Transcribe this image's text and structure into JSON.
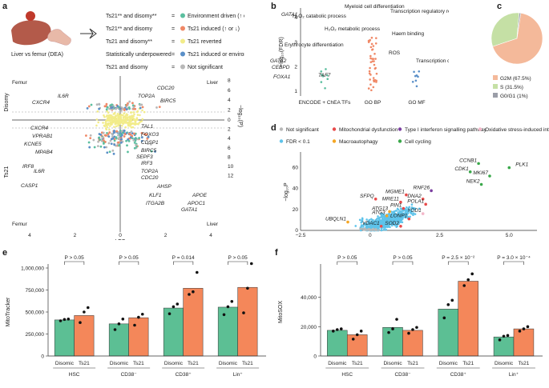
{
  "panel_labels": {
    "a": "a",
    "b": "b",
    "c": "c",
    "d": "d",
    "e": "e",
    "f": "f"
  },
  "colors": {
    "teal": "#5bbf9f",
    "salmon": "#f08866",
    "yellow": "#f2ec8a",
    "blue": "#5a8fc8",
    "lightblue": "#5ec3ea",
    "grey": "#b8b8b8",
    "pie_g2m": "#f4b99a",
    "pie_s": "#c5e0a5",
    "pie_g0": "#9b9ea8",
    "bar_green": "#5cbf94",
    "bar_orange": "#f4875a",
    "red": "#e84a4a",
    "purple": "#7b3fa0",
    "orange": "#f5a623",
    "green": "#3aa84a",
    "pink": "#f3b7c9"
  },
  "panel_a": {
    "image_caption": "Liver vs femur (DEA)",
    "legend": [
      {
        "label": "Ts21** and disomy**",
        "desc": "Environment driven (↑ or ↓)",
        "color": "#5bbf9f"
      },
      {
        "label": "Ts21** and disomy",
        "desc": "Ts21 induced (↑ or ↓)",
        "color": "#f08866"
      },
      {
        "label": "Ts21 and disomy**",
        "desc": "Ts21 reverted",
        "color": "#f2ec8a"
      },
      {
        "label": "Statistically underpowered",
        "desc": "Ts21 induced or environment driven",
        "color": "#5a8fc8"
      },
      {
        "label": "Ts21 and disomy",
        "desc": "Not significant",
        "color": "#b8b8b8"
      }
    ],
    "eq": "=",
    "corner_labels": {
      "femur_top": "Femur",
      "liver_top": "Liver",
      "femur_bottom": "Femur",
      "liver_bottom": "Liver"
    },
    "row_labels": {
      "disomy": "Disomy",
      "ts21": "Ts21"
    },
    "xlabel": "LFC",
    "ylabel": "−log₁₀(P)",
    "xticks": [
      "4",
      "2",
      "0",
      "2",
      "4"
    ],
    "yticks_top": [
      "8",
      "6",
      "4",
      "2",
      "0"
    ],
    "yticks_bottom": [
      "2",
      "4",
      "6",
      "8",
      "10",
      "12"
    ],
    "genes": [
      "IL6R",
      "CXCR4",
      "TOP2A",
      "CDC20",
      "BIRC5",
      "CXCR4",
      "VPRAB1",
      "KCNE5",
      "MPAB4",
      "IRF8",
      "IL6R",
      "CASP1",
      "TAL1",
      "FOXO3",
      "CDSP1",
      "BIRC5",
      "SEPF3",
      "IRF3",
      "TOP2A",
      "CDC20",
      "AHSP",
      "KLF1",
      "APOE",
      "ITGA2B",
      "APOC1",
      "GATA1"
    ]
  },
  "panel_b": {
    "ylabel": "−log₁₀(FDR)",
    "yticks": [
      "1",
      "2",
      "3",
      "4"
    ],
    "categories": [
      "ENCODE + ChEA TFs",
      "GO BP",
      "GO MF"
    ],
    "annotations": [
      "Myeloid cell differentiation",
      "GATA1",
      "H₂O₂ catabolic process",
      "H₂O₂ metabolic process",
      "Erythrocyte differentiation",
      "GATA2",
      "CEBPD",
      "ROS",
      "FOXA1",
      "TAF7",
      "Transcription regulatory region nucleic acid binding",
      "Haem binding",
      "Transcription cis-regulatory region binding"
    ]
  },
  "panel_c": {
    "chart_data": {
      "type": "pie",
      "categories": [
        "G2M (67.5%)",
        "S (31.5%)",
        "G0/G1 (1%)"
      ],
      "values": [
        67.5,
        31.5,
        1.0
      ]
    }
  },
  "panel_d": {
    "legend": [
      {
        "label": "Not significant",
        "color": "#b8b8b8"
      },
      {
        "label": "Mitochondrial dysfunction",
        "color": "#e84a4a"
      },
      {
        "label": "Type I interferon signalling pathway",
        "color": "#7b3fa0"
      },
      {
        "label": "Oxidative stress-induced intrinsic apoptotic signalling",
        "color": "#f3b7c9"
      },
      {
        "label": "FDR < 0.1",
        "color": "#5ec3ea"
      },
      {
        "label": "Macroautophagy",
        "color": "#f5a623"
      },
      {
        "label": "Cell cycling",
        "color": "#3aa84a"
      }
    ],
    "xlabel": "LFC",
    "ylabel": "−log₁₀P",
    "xticks": [
      "−2.5",
      "0",
      "2.5",
      "5.0"
    ],
    "yticks": [
      "0",
      "20",
      "40",
      "60"
    ],
    "genes": [
      "CCNB1",
      "CDK1",
      "MKI67",
      "PLK1",
      "NEK2",
      "RNF26",
      "MGME1",
      "DNA2",
      "MRE11",
      "POLA1",
      "SFPQ",
      "PIN1",
      "ATG13",
      "ATG3",
      "LONP1",
      "YOD1",
      "UBQLN1",
      "VDAC1",
      "SOD2"
    ]
  },
  "panel_e": {
    "chart_data": {
      "type": "bar",
      "ylabel": "MitoTracker",
      "ylim": [
        0,
        1000000
      ],
      "yticks": [
        "0",
        "250,000",
        "500,000",
        "750,000",
        "1,000,000"
      ],
      "groups": [
        "HSC",
        "CD38⁻",
        "CD38⁺",
        "Lin⁺"
      ],
      "series": [
        {
          "name": "Disomic",
          "values": [
            410000,
            365000,
            545000,
            555000
          ]
        },
        {
          "name": "Ts21",
          "values": [
            460000,
            435000,
            770000,
            780000
          ]
        }
      ],
      "points": [
        [
          [
            400000,
            415000,
            420000
          ],
          [
            380000,
            500000,
            550000
          ]
        ],
        [
          [
            300000,
            365000,
            420000
          ],
          [
            350000,
            440000,
            475000
          ]
        ],
        [
          [
            480000,
            560000,
            590000
          ],
          [
            700000,
            730000,
            950000
          ]
        ],
        [
          [
            470000,
            560000,
            620000
          ],
          [
            490000,
            770000,
            1050000
          ]
        ]
      ],
      "pvalues": [
        "P > 0.05",
        "P > 0.05",
        "P = 0.014",
        "P > 0.05"
      ]
    }
  },
  "panel_f": {
    "chart_data": {
      "type": "bar",
      "ylabel": "MitoSOX",
      "ylim": [
        0,
        60000
      ],
      "yticks": [
        "0",
        "20,000",
        "40,000"
      ],
      "groups": [
        "HSC",
        "CD38⁻",
        "CD38⁺",
        "Lin⁺"
      ],
      "series": [
        {
          "name": "Disomic",
          "values": [
            17500,
            19500,
            32000,
            13000
          ]
        },
        {
          "name": "Ts21",
          "values": [
            14500,
            17500,
            51000,
            18500
          ]
        }
      ],
      "points": [
        [
          [
            17000,
            18000,
            18500
          ],
          [
            11500,
            14500,
            17000
          ]
        ],
        [
          [
            16000,
            18500,
            25000
          ],
          [
            15500,
            18000,
            19500
          ]
        ],
        [
          [
            26000,
            35000,
            38000
          ],
          [
            48000,
            52000,
            56000
          ]
        ],
        [
          [
            11000,
            13500,
            14000
          ],
          [
            17000,
            18500,
            20000
          ]
        ]
      ],
      "pvalues": [
        "P > 0.05",
        "P > 0.05",
        "P = 2.5 × 10⁻²",
        "P = 3.0 × 10⁻⁴"
      ]
    }
  }
}
